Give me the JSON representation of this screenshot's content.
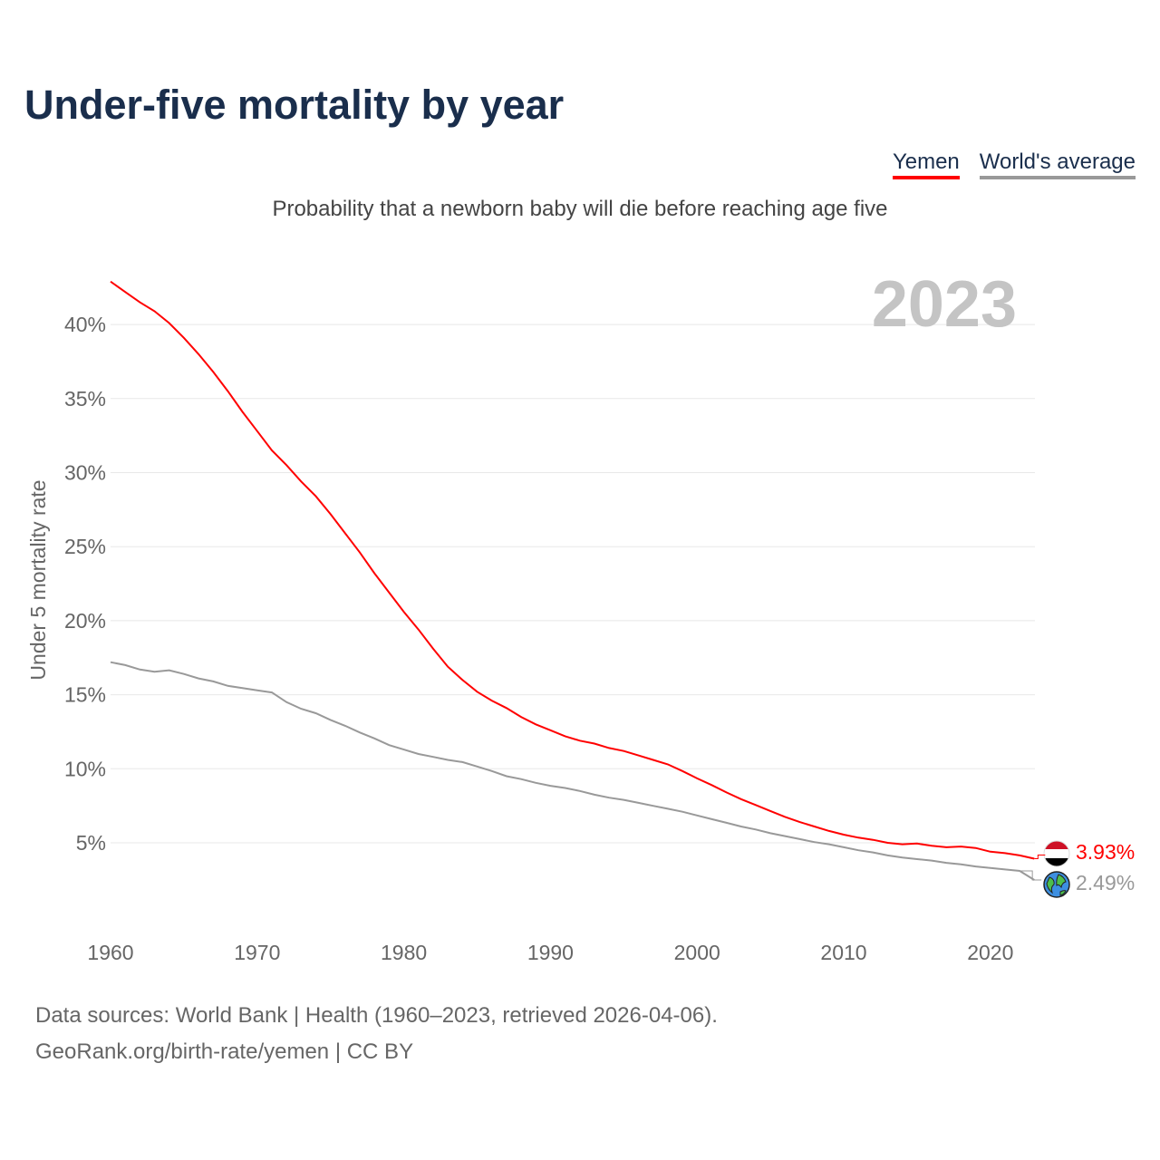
{
  "title": "Under-five mortality by year",
  "legend": {
    "yemen": "Yemen",
    "world": "World's average"
  },
  "subtitle": "Probability that a newborn baby will die before reaching age five",
  "year_label": "2023",
  "end_labels": {
    "yemen": "3.93%",
    "world": "2.49%"
  },
  "source_line1": "Data sources: World Bank | Health (1960–2023, retrieved 2026-04-06).",
  "source_line2": "GeoRank.org/birth-rate/yemen | CC BY",
  "colors": {
    "yemen": "#ff0000",
    "world": "#999999",
    "title": "#1a2e4c"
  },
  "chart_data": {
    "type": "line",
    "title": "Under-five mortality by year",
    "ylabel": "Under 5 mortality rate",
    "xlabel": "",
    "xlim": [
      1960,
      2023
    ],
    "ylim": [
      0,
      42
    ],
    "xticks": [
      1960,
      1970,
      1980,
      1990,
      2000,
      2010,
      2020
    ],
    "xtick_labels": [
      "1960",
      "1970",
      "1980",
      "1990",
      "2000",
      "2010",
      "2020"
    ],
    "yticks": [
      5,
      10,
      15,
      20,
      25,
      30,
      35,
      40
    ],
    "ytick_labels": [
      "5%",
      "10%",
      "15%",
      "20%",
      "25%",
      "30%",
      "35%",
      "40%"
    ],
    "grid": true,
    "legend_position": "top-right",
    "x_start": 1960,
    "series": [
      {
        "name": "Yemen",
        "values": [
          42.9,
          42.2,
          41.5,
          40.9,
          40.1,
          39.1,
          38.0,
          36.8,
          35.5,
          34.1,
          32.8,
          31.5,
          30.5,
          29.4,
          28.4,
          27.2,
          25.9,
          24.6,
          23.2,
          21.9,
          20.6,
          19.4,
          18.1,
          16.9,
          16.0,
          15.2,
          14.6,
          14.1,
          13.5,
          13.0,
          12.6,
          12.2,
          11.9,
          11.7,
          11.4,
          11.2,
          10.9,
          10.6,
          10.3,
          9.85,
          9.35,
          8.9,
          8.4,
          7.95,
          7.55,
          7.15,
          6.75,
          6.4,
          6.1,
          5.8,
          5.55,
          5.35,
          5.2,
          5.0,
          4.9,
          4.95,
          4.8,
          4.7,
          4.75,
          4.65,
          4.4,
          4.3,
          4.15,
          3.93
        ]
      },
      {
        "name": "World's average",
        "values": [
          17.2,
          17.0,
          16.7,
          16.55,
          16.65,
          16.4,
          16.1,
          15.9,
          15.6,
          15.45,
          15.3,
          15.15,
          14.5,
          14.05,
          13.75,
          13.3,
          12.9,
          12.45,
          12.05,
          11.6,
          11.3,
          11.0,
          10.8,
          10.6,
          10.45,
          10.15,
          9.85,
          9.5,
          9.3,
          9.05,
          8.85,
          8.7,
          8.5,
          8.25,
          8.05,
          7.9,
          7.7,
          7.5,
          7.3,
          7.1,
          6.85,
          6.6,
          6.35,
          6.1,
          5.9,
          5.65,
          5.45,
          5.25,
          5.05,
          4.9,
          4.7,
          4.5,
          4.35,
          4.15,
          4.0,
          3.9,
          3.8,
          3.65,
          3.55,
          3.4,
          3.3,
          3.2,
          3.1,
          2.49
        ]
      }
    ]
  }
}
